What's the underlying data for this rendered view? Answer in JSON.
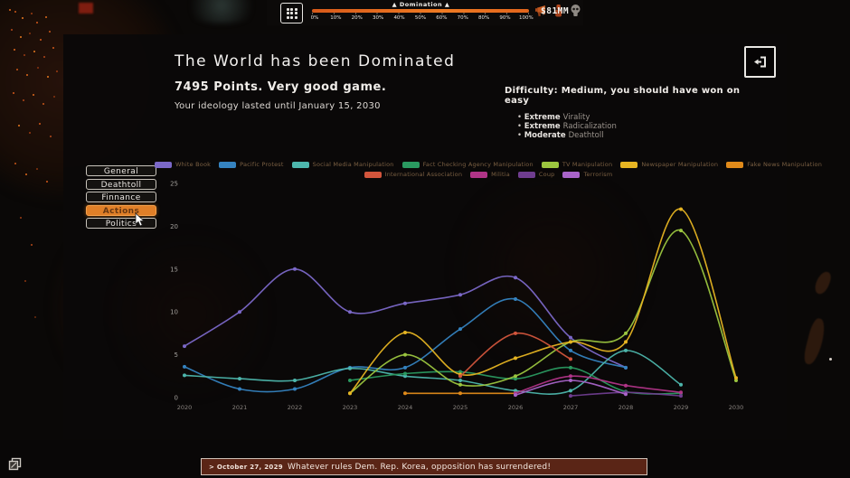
{
  "top_bar": {
    "title": "▲ Domination ▲",
    "tick_labels": [
      "0%",
      "10%",
      "20%",
      "30%",
      "40%",
      "50%",
      "60%",
      "70%",
      "80%",
      "90%",
      "100%"
    ],
    "bar_color": "#e2651c",
    "money": "$81MM",
    "icons": [
      "grid-icon",
      "megaphone-icon",
      "fist-icon",
      "skull-icon"
    ]
  },
  "panel": {
    "title": "The World has been Dominated",
    "score_line": "7495 Points. Very good game.",
    "ideology_line": "Your ideology lasted until January 15, 2030",
    "difficulty": {
      "header": "Difficulty: Medium, you should have won on easy",
      "items": [
        {
          "level": "Extreme",
          "label": "Virality"
        },
        {
          "level": "Extreme",
          "label": "Radicalization"
        },
        {
          "level": "Moderate",
          "label": "Deathtoll"
        }
      ]
    },
    "buttons": [
      {
        "label": "General",
        "active": false
      },
      {
        "label": "Deathtoll",
        "active": false
      },
      {
        "label": "Finnance",
        "active": false
      },
      {
        "label": "Actions",
        "active": true
      },
      {
        "label": "Politics",
        "active": false
      }
    ]
  },
  "chart_data": {
    "type": "line",
    "xlabel": "",
    "ylabel": "",
    "ylim": [
      0,
      25
    ],
    "yticks": [
      0,
      5,
      10,
      15,
      20,
      25
    ],
    "xticks": [
      2020,
      2021,
      2022,
      2023,
      2024,
      2025,
      2026,
      2027,
      2028,
      2029,
      2030
    ],
    "grid": false,
    "legend_position": "top",
    "series": [
      {
        "name": "White Book",
        "color": "#7b68c8",
        "legend_row": 1,
        "points": [
          [
            2020,
            6
          ],
          [
            2021,
            10
          ],
          [
            2022,
            15
          ],
          [
            2023,
            10
          ],
          [
            2024,
            11
          ],
          [
            2025,
            12
          ],
          [
            2026,
            14
          ],
          [
            2027,
            7
          ],
          [
            2028,
            3.5
          ]
        ]
      },
      {
        "name": "Pacific Protest",
        "color": "#3583c0",
        "legend_row": 1,
        "points": [
          [
            2020,
            3.6
          ],
          [
            2021,
            1
          ],
          [
            2022,
            1
          ],
          [
            2023,
            3.5
          ],
          [
            2024,
            3.5
          ],
          [
            2025,
            8
          ],
          [
            2026,
            11.5
          ],
          [
            2027,
            5.5
          ],
          [
            2028,
            3.5
          ]
        ]
      },
      {
        "name": "Social Media Manipulation",
        "color": "#4db6ac",
        "legend_row": 1,
        "points": [
          [
            2020,
            2.6
          ],
          [
            2021,
            2.2
          ],
          [
            2022,
            2
          ],
          [
            2023,
            3.4
          ],
          [
            2024,
            2.5
          ],
          [
            2025,
            2
          ],
          [
            2026,
            0.8
          ],
          [
            2027,
            0.8
          ],
          [
            2028,
            5.5
          ],
          [
            2029,
            1.5
          ]
        ]
      },
      {
        "name": "Fact Checking Agency Manipulation",
        "color": "#2a9960",
        "legend_row": 1,
        "points": [
          [
            2023,
            2
          ],
          [
            2024,
            2.8
          ],
          [
            2025,
            3
          ],
          [
            2026,
            2.2
          ],
          [
            2027,
            3.5
          ],
          [
            2028,
            0.7
          ],
          [
            2029,
            0.5
          ]
        ]
      },
      {
        "name": "TV Manipulation",
        "color": "#9bc53f",
        "legend_row": 1,
        "points": [
          [
            2023,
            0.5
          ],
          [
            2024,
            5
          ],
          [
            2025,
            1.5
          ],
          [
            2026,
            2.5
          ],
          [
            2027,
            6.5
          ],
          [
            2028,
            7.5
          ],
          [
            2029,
            19.5
          ],
          [
            2030,
            2
          ]
        ]
      },
      {
        "name": "Newspaper Manipulation",
        "color": "#e6b422",
        "legend_row": 1,
        "points": [
          [
            2023,
            0.5
          ],
          [
            2024,
            7.6
          ],
          [
            2025,
            2.7
          ],
          [
            2026,
            4.6
          ],
          [
            2027,
            6.5
          ],
          [
            2028,
            6.5
          ],
          [
            2029,
            22
          ],
          [
            2030,
            2.3
          ]
        ]
      },
      {
        "name": "Fake News Manipulation",
        "color": "#e08a1a",
        "legend_row": 1,
        "points": [
          [
            2024,
            0.5
          ],
          [
            2025,
            0.5
          ],
          [
            2026,
            0.5
          ]
        ]
      },
      {
        "name": "International Association",
        "color": "#d2553c",
        "legend_row": 2,
        "points": [
          [
            2025,
            2.5
          ],
          [
            2026,
            7.5
          ],
          [
            2027,
            4.5
          ]
        ]
      },
      {
        "name": "Militia",
        "color": "#b03487",
        "legend_row": 2,
        "points": [
          [
            2026,
            0.5
          ],
          [
            2027,
            2.5
          ],
          [
            2028,
            1.4
          ],
          [
            2029,
            0.6
          ]
        ]
      },
      {
        "name": "Coup",
        "color": "#6f3d8f",
        "legend_row": 2,
        "points": [
          [
            2027,
            0.2
          ],
          [
            2028,
            0.6
          ],
          [
            2029,
            0.2
          ]
        ]
      },
      {
        "name": "Terrorism",
        "color": "#a964c9",
        "legend_row": 2,
        "points": [
          [
            2026,
            0.3
          ],
          [
            2027,
            2
          ],
          [
            2028,
            0.4
          ]
        ]
      }
    ]
  },
  "bottom_bar": {
    "date": "> October 27, 2029",
    "message": "Whatever rules Dem. Rep. Korea, opposition has surrendered!"
  }
}
